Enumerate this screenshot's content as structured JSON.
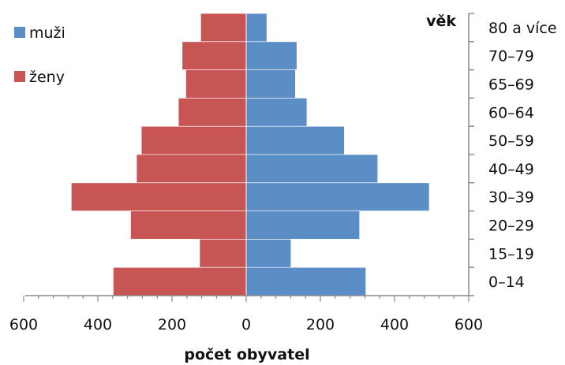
{
  "chart_data": {
    "type": "bar",
    "orientation": "horizontal-population-pyramid",
    "categories": [
      "0–14",
      "15–19",
      "20–29",
      "30–39",
      "40–49",
      "50–59",
      "60–64",
      "65–69",
      "70–79",
      "80 a více"
    ],
    "series": [
      {
        "name": "muži",
        "color": "#5b8ec6",
        "values": [
          322,
          120,
          305,
          493,
          354,
          264,
          163,
          132,
          136,
          55
        ]
      },
      {
        "name": "ženy",
        "color": "#c65554",
        "values": [
          358,
          125,
          311,
          471,
          295,
          282,
          182,
          162,
          172,
          122
        ]
      }
    ],
    "xlabel": "počet obyvatel",
    "ylabel": "věk",
    "xticks": [
      "600",
      "400",
      "200",
      "0",
      "200",
      "400",
      "600"
    ],
    "xlim": [
      -600,
      600
    ],
    "legend_position": "top-left",
    "grid": false
  }
}
